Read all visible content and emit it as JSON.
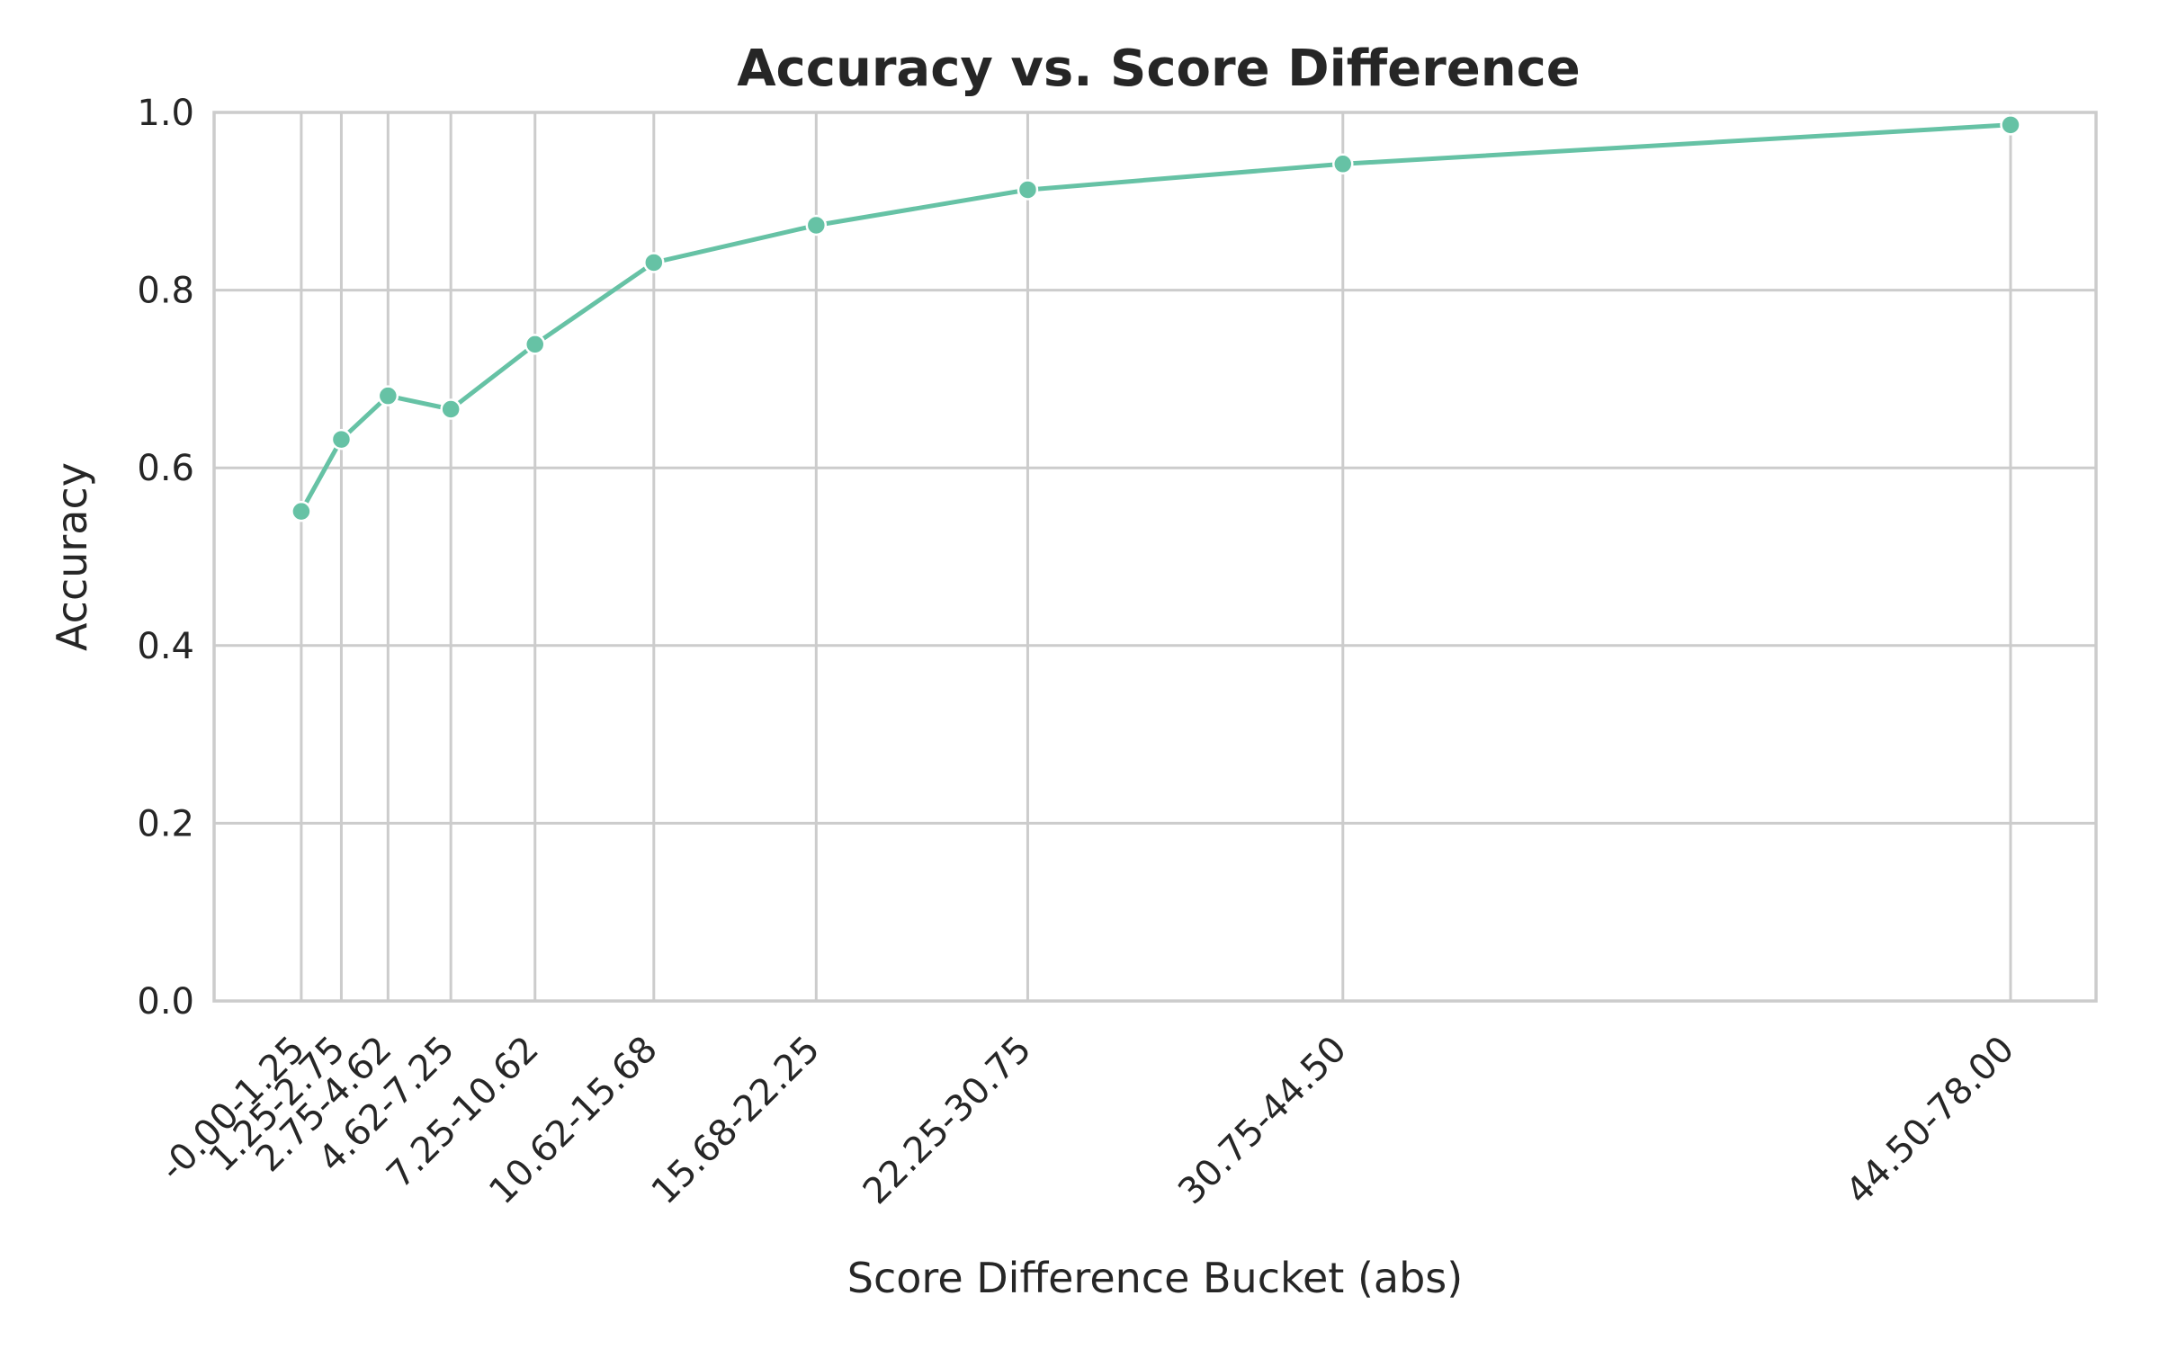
{
  "chart_data": {
    "type": "line",
    "title": "Accuracy vs. Score Difference",
    "xlabel": "Score Difference Bucket (abs)",
    "ylabel": "Accuracy",
    "ylim": [
      0,
      1.0
    ],
    "xlim": [
      -4.08,
      84.0
    ],
    "yticks": [
      "0.0",
      "0.2",
      "0.4",
      "0.6",
      "0.8",
      "1.0"
    ],
    "grid": true,
    "color": "#66c2a5",
    "categories": [
      "-0.00-1.25",
      "1.25-2.75",
      "2.75-4.62",
      "4.62-7.25",
      "7.25-10.62",
      "10.62-15.68",
      "15.68-22.25",
      "22.25-30.75",
      "30.75-44.50",
      "44.50-78.00"
    ],
    "x": [
      0.0,
      1.875,
      4.06,
      7.0,
      10.94,
      16.5,
      24.1,
      34.0,
      48.75,
      80.0
    ],
    "values": [
      0.551,
      0.632,
      0.681,
      0.666,
      0.739,
      0.831,
      0.873,
      0.913,
      0.942,
      0.986
    ]
  }
}
